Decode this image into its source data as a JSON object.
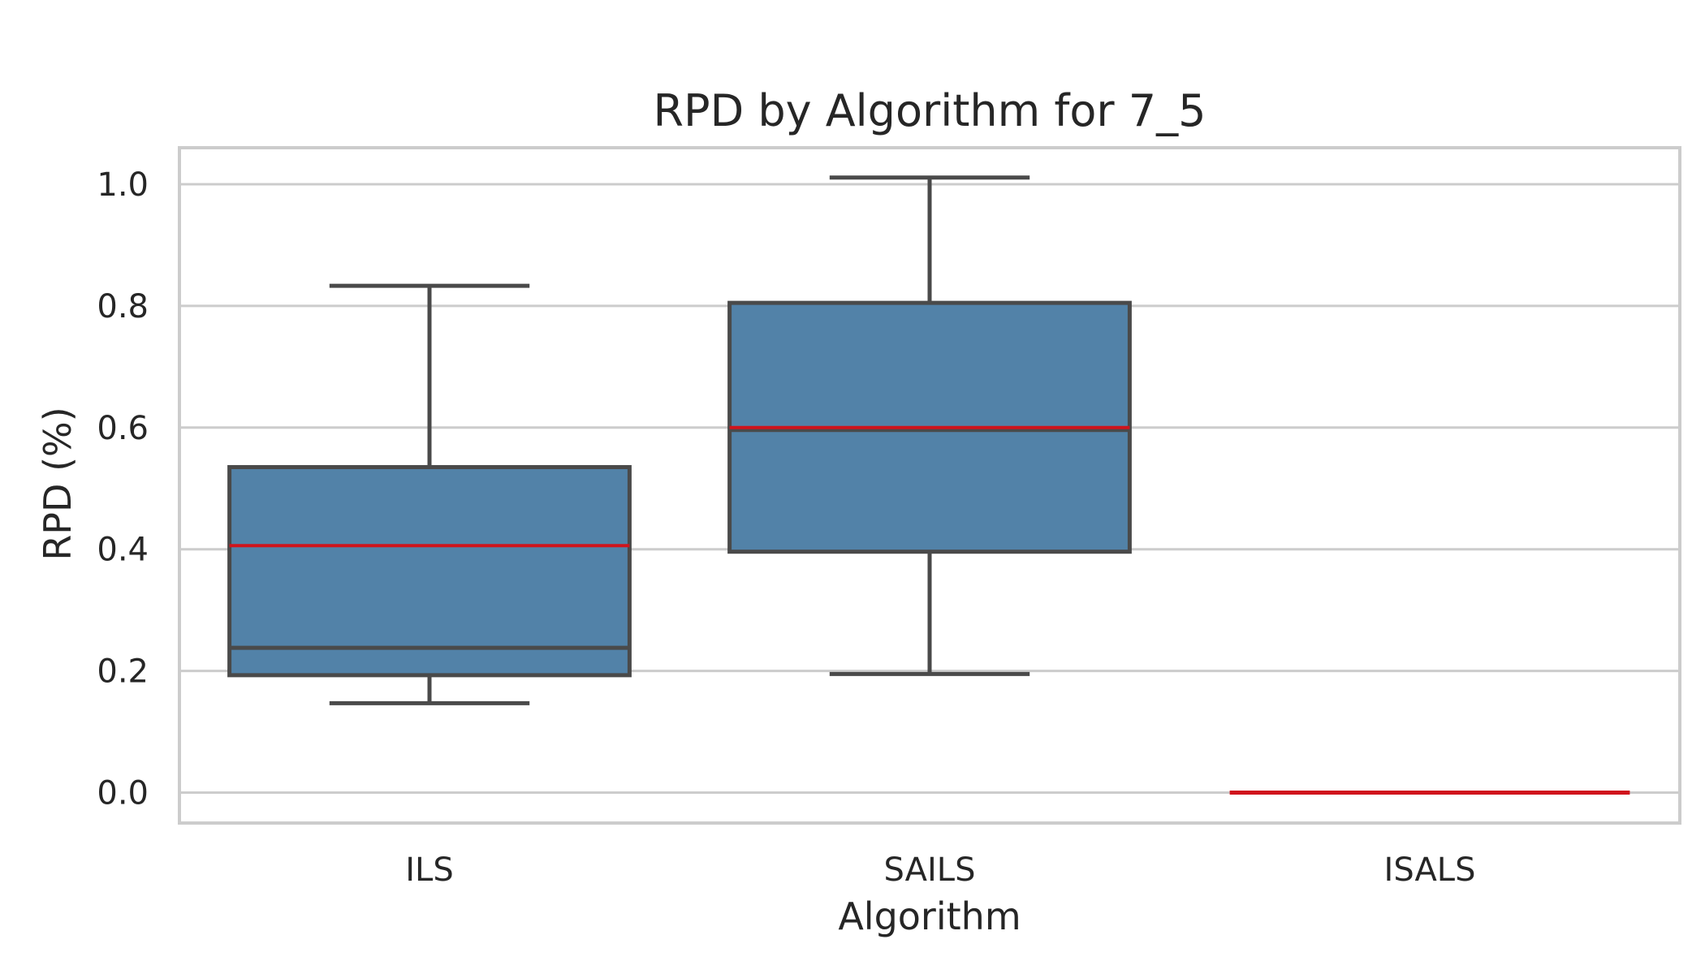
{
  "chart_data": {
    "type": "box",
    "title": "RPD by Algorithm for 7_5",
    "xlabel": "Algorithm",
    "ylabel": "RPD (%)",
    "categories": [
      "ILS",
      "SAILS",
      "ISALS"
    ],
    "boxes": [
      {
        "name": "ILS",
        "whisker_low": 0.147,
        "q1": 0.193,
        "median": 0.238,
        "mean": 0.406,
        "q3": 0.535,
        "whisker_high": 0.833
      },
      {
        "name": "SAILS",
        "whisker_low": 0.195,
        "q1": 0.396,
        "median": 0.596,
        "mean": 0.6,
        "q3": 0.805,
        "whisker_high": 1.011
      },
      {
        "name": "ISALS",
        "whisker_low": 0.0,
        "q1": 0.0,
        "median": 0.0,
        "mean": 0.0,
        "q3": 0.0,
        "whisker_high": 0.0
      }
    ],
    "yticks": [
      0.0,
      0.2,
      0.4,
      0.6,
      0.8,
      1.0
    ],
    "ytick_labels": [
      "0.0",
      "0.2",
      "0.4",
      "0.6",
      "0.8",
      "1.0"
    ],
    "ylim": [
      -0.05,
      1.06
    ],
    "grid": "horizontal",
    "colors": {
      "box_fill": "#5282a8",
      "box_edge": "#4a4a4a",
      "mean_line": "#d0141c",
      "grid": "#cccccc",
      "frame": "#cccccc"
    }
  }
}
